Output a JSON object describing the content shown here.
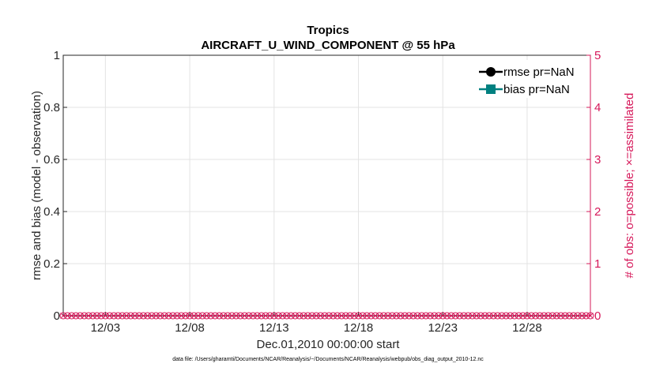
{
  "chart_data": {
    "type": "line",
    "title": "Tropics",
    "subtitle": "AIRCRAFT_U_WIND_COMPONENT @ 55 hPa",
    "ylabel": "rmse and bias (model - observation)",
    "y2label": "# of obs: o=possible; ×=assimilated",
    "xlabel": "Dec.01,2010 00:00:00 start",
    "ylim": [
      0,
      1
    ],
    "yticks": [
      "0",
      "0.2",
      "0.4",
      "0.6",
      "0.8",
      "1"
    ],
    "y2lim": [
      0,
      5
    ],
    "y2ticks": [
      "0",
      "1",
      "2",
      "3",
      "4",
      "5"
    ],
    "xlim": [
      0.5,
      31.75
    ],
    "xticks": [
      {
        "value": 3,
        "label": "12/03"
      },
      {
        "value": 8,
        "label": "12/08"
      },
      {
        "value": 13,
        "label": "12/13"
      },
      {
        "value": 18,
        "label": "12/18"
      },
      {
        "value": 23,
        "label": "12/23"
      },
      {
        "value": 28,
        "label": "12/28"
      }
    ],
    "grid": true,
    "legend_position": "top-right",
    "series": [
      {
        "name": "rmse pr=NaN",
        "color": "#000000",
        "marker": "circle",
        "values": []
      },
      {
        "name": "bias pr=NaN",
        "color": "#008080",
        "marker": "square",
        "values": []
      }
    ],
    "obs_counts": {
      "color": "#d6185a",
      "possible_marker": "o",
      "assimilated_marker": "×",
      "x_start": 0.5,
      "x_step": 0.25,
      "count": 126,
      "value": 0
    },
    "footnote": "data file: /Users/gharamti/Documents/NCAR/Reanalysis/~/Documents/NCAR/Reanalysis/webpub/obs_diag_output_2010-12.nc"
  }
}
